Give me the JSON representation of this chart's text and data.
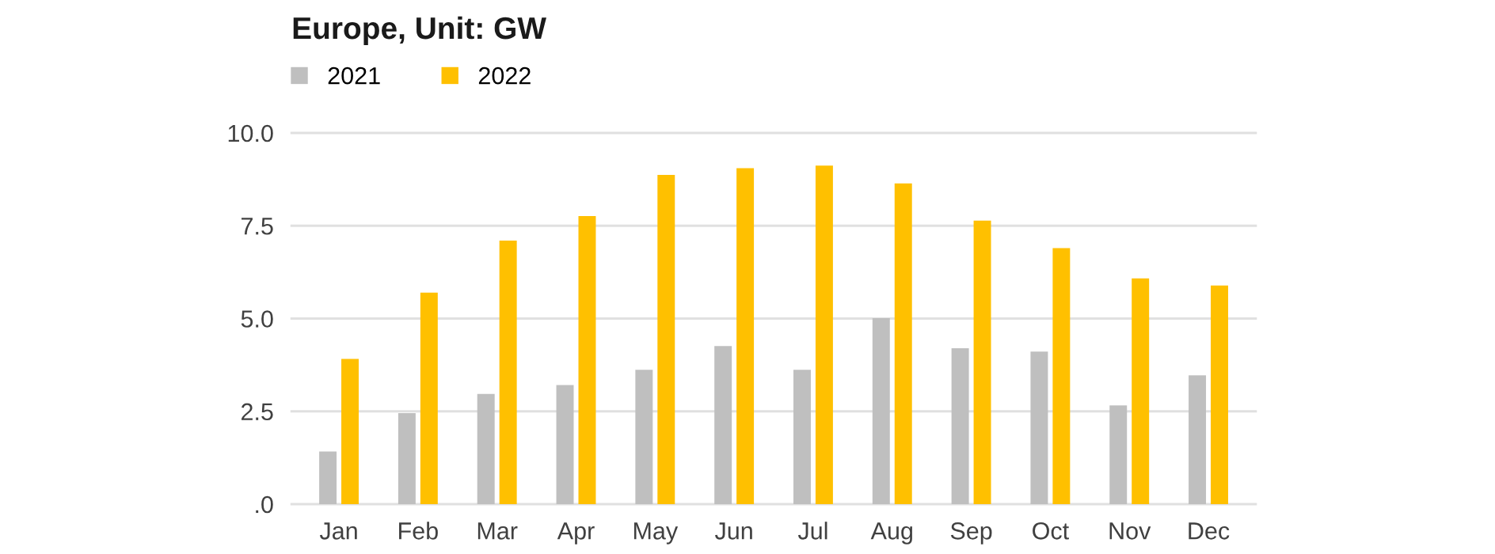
{
  "chart_data": {
    "type": "bar",
    "title": "Europe, Unit: GW",
    "categories": [
      "Jan",
      "Feb",
      "Mar",
      "Apr",
      "May",
      "Jun",
      "Jul",
      "Aug",
      "Sep",
      "Oct",
      "Nov",
      "Dec"
    ],
    "series": [
      {
        "name": "2021",
        "color": "#bfbfbf",
        "values": [
          1.42,
          2.45,
          2.97,
          3.21,
          3.62,
          4.26,
          3.62,
          5.01,
          4.2,
          4.11,
          2.66,
          3.47
        ]
      },
      {
        "name": "2022",
        "color": "#ffc000",
        "values": [
          3.91,
          5.7,
          7.1,
          7.76,
          8.87,
          9.05,
          9.12,
          8.64,
          7.64,
          6.9,
          6.08,
          5.89
        ]
      }
    ],
    "ylim": [
      0,
      10
    ],
    "yticks": [
      {
        "value": 0,
        "label": ".0"
      },
      2.5,
      {
        "value": 5,
        "label": "5.0"
      },
      7.5,
      {
        "value": 10,
        "label": "10.0"
      }
    ],
    "grid": "y",
    "legend": "top left"
  }
}
